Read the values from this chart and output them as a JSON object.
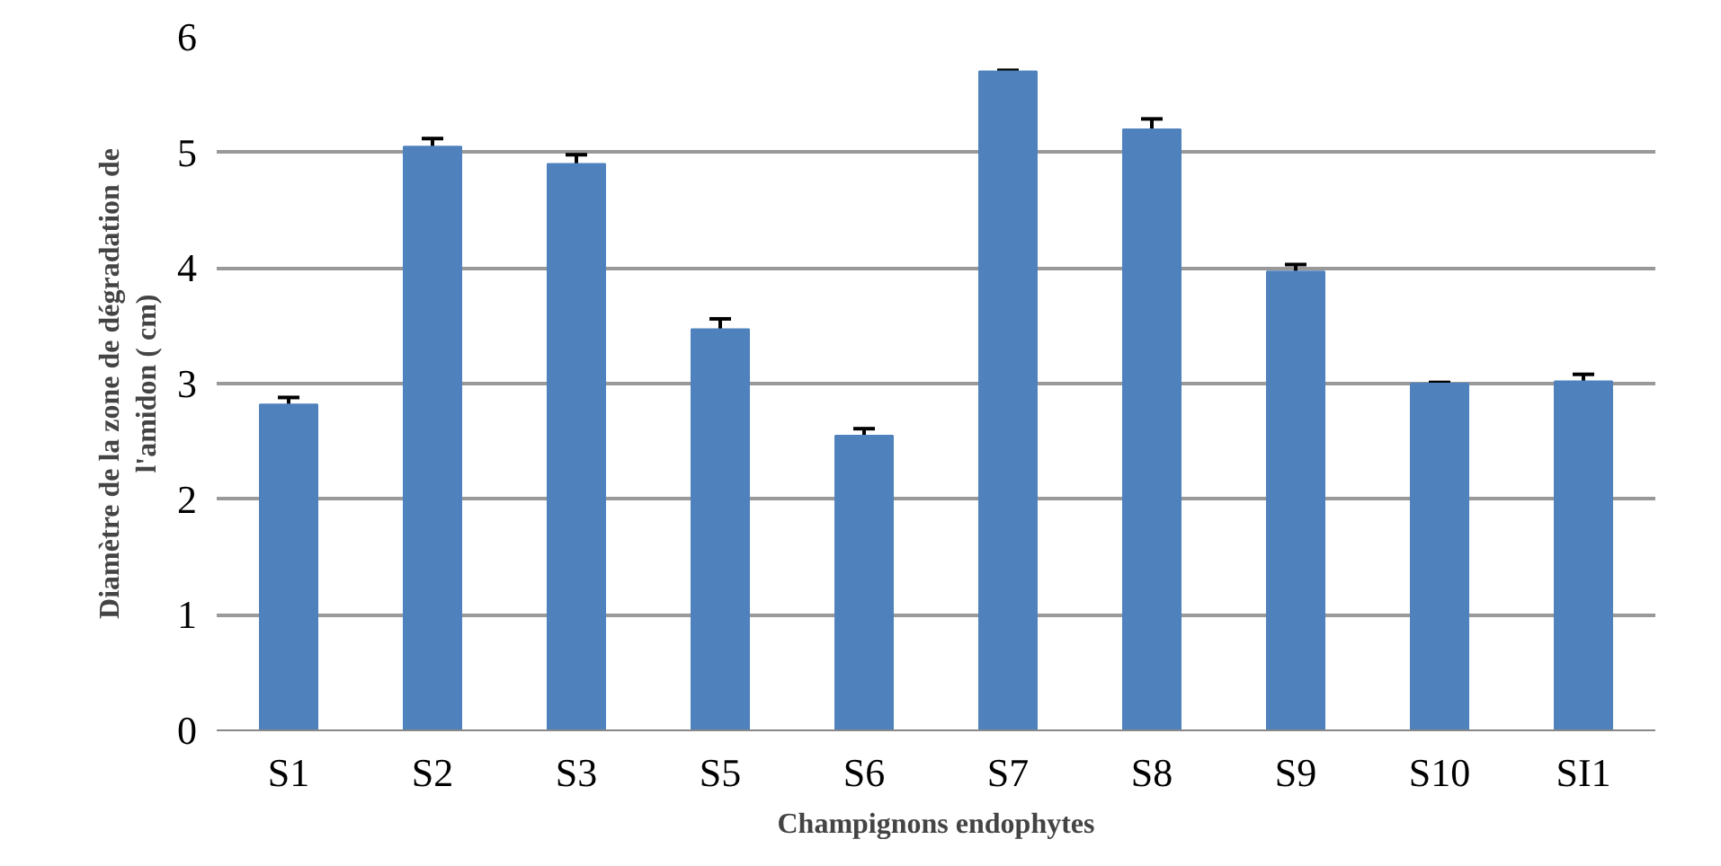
{
  "chart_data": {
    "type": "bar",
    "xlabel": "Champignons endophytes",
    "ylabel": "Diamètre de la zone de dégradation de\nl'amidon ( cm)",
    "categories": [
      "S1",
      "S2",
      "S3",
      "S5",
      "S6",
      "S7",
      "S8",
      "S9",
      "S10",
      "SI1"
    ],
    "values": [
      2.82,
      5.05,
      4.9,
      3.47,
      2.55,
      5.7,
      5.2,
      3.97,
      3.0,
      3.02
    ],
    "errors": [
      0.06,
      0.07,
      0.08,
      0.09,
      0.06,
      0.01,
      0.09,
      0.06,
      0.01,
      0.06
    ],
    "color": "#4f81bd",
    "ylim": [
      0,
      6
    ],
    "yticks": [
      0,
      1,
      2,
      3,
      4,
      5,
      6
    ],
    "grid": "y"
  }
}
